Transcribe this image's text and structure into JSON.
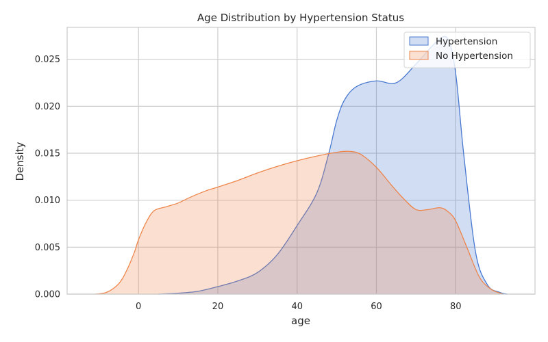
{
  "chart_data": {
    "type": "area",
    "title": "Age Distribution by Hypertension Status",
    "xlabel": "age",
    "ylabel": "Density",
    "xlim": [
      -18,
      100
    ],
    "ylim": [
      0,
      0.0284
    ],
    "xticks": [
      0,
      20,
      40,
      60,
      80
    ],
    "yticks": [
      0.0,
      0.005,
      0.01,
      0.015,
      0.02,
      0.025
    ],
    "ytick_labels": [
      "0.000",
      "0.005",
      "0.010",
      "0.015",
      "0.020",
      "0.025"
    ],
    "grid": true,
    "legend_position": "top-right",
    "series": [
      {
        "name": "Hypertension",
        "color": "#4878d0",
        "x": [
          5,
          10,
          15,
          20,
          25,
          30,
          35,
          40,
          45,
          48,
          50,
          52,
          55,
          60,
          65,
          70,
          75,
          78,
          80,
          82,
          85,
          88,
          91,
          93
        ],
        "y": [
          0.0,
          0.0001,
          0.0003,
          0.0008,
          0.0014,
          0.0023,
          0.0042,
          0.0073,
          0.0108,
          0.015,
          0.0185,
          0.0207,
          0.0221,
          0.0227,
          0.0225,
          0.0245,
          0.0268,
          0.0272,
          0.0235,
          0.015,
          0.0045,
          0.001,
          0.0002,
          0.0
        ]
      },
      {
        "name": "No Hypertension",
        "color": "#ee854a",
        "x": [
          -11,
          -8,
          -5,
          -3,
          -1,
          0,
          2,
          4,
          7,
          10,
          13,
          17,
          20,
          25,
          30,
          35,
          40,
          45,
          50,
          53,
          56,
          60,
          64,
          67,
          70,
          73,
          76,
          78,
          80,
          83,
          86,
          89,
          92
        ],
        "y": [
          0.0,
          0.0002,
          0.0011,
          0.0025,
          0.0045,
          0.0058,
          0.0077,
          0.0089,
          0.0093,
          0.0097,
          0.0103,
          0.011,
          0.0114,
          0.0121,
          0.0129,
          0.0136,
          0.0142,
          0.0147,
          0.0151,
          0.0152,
          0.0149,
          0.0135,
          0.0115,
          0.0101,
          0.009,
          0.009,
          0.0092,
          0.0088,
          0.0078,
          0.0048,
          0.0018,
          0.0005,
          0.0
        ]
      }
    ]
  }
}
